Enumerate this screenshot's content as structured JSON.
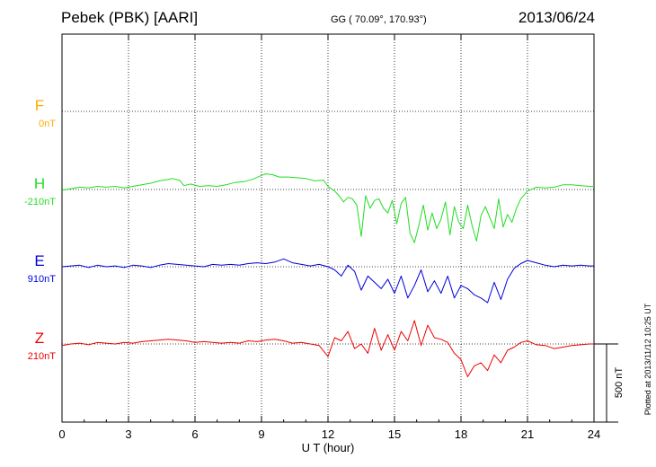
{
  "header": {
    "station": "Pebek (PBK)  [AARI]",
    "coords": "GG ( 70.09°, 170.93°)",
    "date": "2013/06/24"
  },
  "side_note": "Plotted at 2013/11/12 10:25 UT",
  "scale_bar": {
    "label": "500 nT",
    "value_nT": 500
  },
  "chart_data": {
    "type": "line",
    "xlabel": "U T (hour)",
    "xlim": [
      0,
      24
    ],
    "xticks": [
      0,
      3,
      6,
      9,
      12,
      15,
      18,
      21,
      24
    ],
    "xtick_labels": [
      "0",
      "3",
      "6",
      "9",
      "12",
      "15",
      "18",
      "21",
      "24"
    ],
    "grid": true,
    "y_units": "nT offset from component baseline",
    "series": [
      {
        "name": "F",
        "baseline_label": "0nT",
        "color": "#ffaa00",
        "x": [],
        "y": []
      },
      {
        "name": "H",
        "baseline_label": "-210nT",
        "color": "#22dd22",
        "x": [
          0,
          0.4,
          0.8,
          1.2,
          1.6,
          2.0,
          2.4,
          2.8,
          3.2,
          3.6,
          4.0,
          4.4,
          4.8,
          5.0,
          5.3,
          5.5,
          5.8,
          6.2,
          6.6,
          7.0,
          7.4,
          7.8,
          8.2,
          8.6,
          9.0,
          9.2,
          9.5,
          9.8,
          10.2,
          10.6,
          11.0,
          11.4,
          11.8,
          12.0,
          12.3,
          12.5,
          12.7,
          12.9,
          13.1,
          13.3,
          13.5,
          13.7,
          13.9,
          14.1,
          14.3,
          14.5,
          14.7,
          14.9,
          15.1,
          15.3,
          15.5,
          15.7,
          15.9,
          16.1,
          16.3,
          16.5,
          16.7,
          16.9,
          17.1,
          17.3,
          17.5,
          17.7,
          17.9,
          18.1,
          18.3,
          18.5,
          18.7,
          18.9,
          19.1,
          19.3,
          19.5,
          19.7,
          19.9,
          20.1,
          20.3,
          20.5,
          20.7,
          21.0,
          21.4,
          21.8,
          22.2,
          22.6,
          23.0,
          23.4,
          23.8,
          24.0
        ],
        "y": [
          -5,
          5,
          15,
          10,
          20,
          15,
          20,
          10,
          20,
          30,
          40,
          55,
          65,
          70,
          60,
          25,
          35,
          20,
          25,
          20,
          30,
          45,
          50,
          65,
          90,
          100,
          95,
          80,
          80,
          75,
          70,
          55,
          60,
          20,
          -10,
          -40,
          -80,
          -50,
          -60,
          -100,
          -300,
          -40,
          -120,
          -70,
          -60,
          -120,
          -150,
          -70,
          -220,
          -90,
          -50,
          -280,
          -340,
          -230,
          -100,
          -260,
          -150,
          -250,
          -190,
          -80,
          -290,
          -110,
          -210,
          -250,
          -100,
          -230,
          -330,
          -170,
          -110,
          -180,
          -250,
          -60,
          -240,
          -160,
          -210,
          -120,
          -60,
          -10,
          15,
          10,
          15,
          30,
          30,
          25,
          20,
          20
        ]
      },
      {
        "name": "E",
        "baseline_label": "910nT",
        "color": "#0000dd",
        "x": [
          0,
          0.4,
          0.8,
          1.2,
          1.6,
          2.0,
          2.4,
          2.8,
          3.2,
          3.6,
          4.0,
          4.4,
          4.8,
          5.2,
          5.6,
          6.0,
          6.4,
          6.8,
          7.2,
          7.6,
          8.0,
          8.4,
          8.8,
          9.2,
          9.6,
          10.0,
          10.4,
          10.8,
          11.2,
          11.6,
          12.0,
          12.3,
          12.6,
          12.9,
          13.2,
          13.5,
          13.8,
          14.1,
          14.4,
          14.7,
          15.0,
          15.3,
          15.6,
          15.9,
          16.2,
          16.5,
          16.8,
          17.1,
          17.4,
          17.7,
          18.0,
          18.3,
          18.6,
          18.9,
          19.2,
          19.5,
          19.8,
          20.1,
          20.4,
          20.7,
          21.0,
          21.4,
          21.8,
          22.2,
          22.6,
          23.0,
          23.4,
          23.8,
          24.0
        ],
        "y": [
          0,
          5,
          10,
          -5,
          10,
          0,
          5,
          -5,
          10,
          5,
          -5,
          10,
          20,
          15,
          10,
          5,
          0,
          15,
          10,
          15,
          10,
          20,
          25,
          20,
          30,
          50,
          25,
          15,
          5,
          15,
          0,
          -20,
          -60,
          10,
          -30,
          -150,
          -60,
          -100,
          -140,
          -80,
          -170,
          -60,
          -200,
          -120,
          -20,
          -160,
          -90,
          -170,
          -60,
          -200,
          -120,
          -140,
          -180,
          -200,
          -230,
          -100,
          -210,
          -80,
          -10,
          20,
          40,
          25,
          10,
          0,
          10,
          5,
          10,
          5,
          5
        ]
      },
      {
        "name": "Z",
        "baseline_label": "210nT",
        "color": "#ee0000",
        "x": [
          0,
          0.4,
          0.8,
          1.2,
          1.6,
          2.0,
          2.4,
          2.8,
          3.2,
          3.6,
          4.0,
          4.4,
          4.8,
          5.2,
          5.6,
          6.0,
          6.4,
          6.8,
          7.2,
          7.6,
          8.0,
          8.4,
          8.8,
          9.2,
          9.6,
          10.0,
          10.4,
          10.8,
          11.2,
          11.6,
          12.0,
          12.3,
          12.6,
          12.9,
          13.2,
          13.5,
          13.8,
          14.1,
          14.4,
          14.7,
          15.0,
          15.3,
          15.6,
          15.9,
          16.2,
          16.5,
          16.8,
          17.1,
          17.4,
          17.7,
          18.0,
          18.3,
          18.6,
          18.9,
          19.2,
          19.5,
          19.8,
          20.1,
          20.4,
          20.7,
          21.0,
          21.4,
          21.8,
          22.2,
          22.6,
          23.0,
          23.4,
          23.8,
          24.0
        ],
        "y": [
          -10,
          0,
          5,
          -5,
          10,
          5,
          0,
          10,
          5,
          15,
          20,
          25,
          30,
          25,
          20,
          10,
          15,
          10,
          5,
          10,
          5,
          20,
          15,
          25,
          30,
          20,
          5,
          10,
          0,
          -10,
          -80,
          40,
          20,
          80,
          -30,
          0,
          -60,
          100,
          -40,
          60,
          -40,
          80,
          20,
          150,
          -10,
          120,
          40,
          30,
          10,
          -60,
          -100,
          -210,
          -140,
          -120,
          -170,
          -70,
          -120,
          -40,
          -20,
          10,
          20,
          -5,
          -10,
          -30,
          -20,
          -10,
          -5,
          0,
          0
        ]
      }
    ]
  }
}
